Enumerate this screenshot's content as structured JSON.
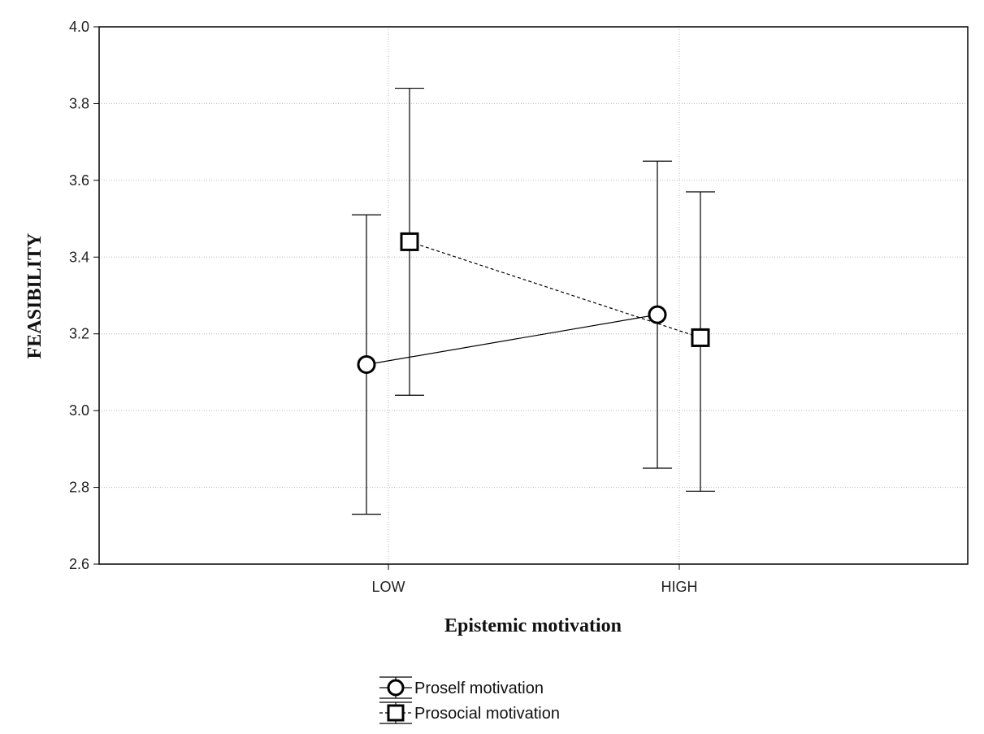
{
  "chart_data": {
    "type": "line",
    "xlabel": "Epistemic motivation",
    "ylabel": "FEASIBILITY",
    "categories": [
      "LOW",
      "HIGH"
    ],
    "ylim": [
      2.6,
      4.0
    ],
    "yticks": [
      "2.6",
      "2.8",
      "3.0",
      "3.2",
      "3.4",
      "3.6",
      "3.8",
      "4.0"
    ],
    "grid": true,
    "legend_position": "bottom-center",
    "series": [
      {
        "name": "Proself motivation",
        "marker": "circle",
        "line_style": "solid",
        "values": [
          3.12,
          3.25
        ],
        "error_low": [
          2.73,
          2.85
        ],
        "error_high": [
          3.51,
          3.65
        ]
      },
      {
        "name": "Prosocial motivation",
        "marker": "square",
        "line_style": "dashed",
        "values": [
          3.44,
          3.19
        ],
        "error_low": [
          3.04,
          2.79
        ],
        "error_high": [
          3.84,
          3.57
        ]
      }
    ]
  }
}
